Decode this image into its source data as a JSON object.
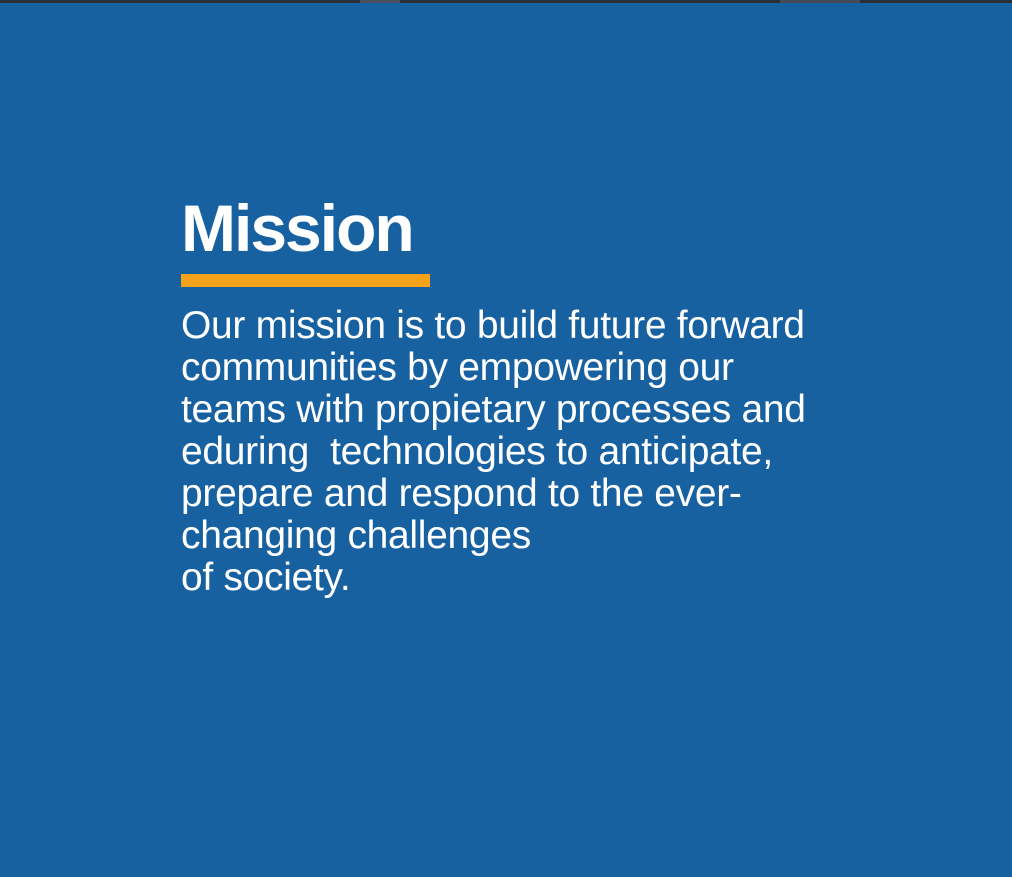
{
  "mission": {
    "title": "Mission",
    "body": "Our mission is to build future forward\ncommunities by empowering our\nteams with propietary processes and\neduring  technologies to anticipate,\nprepare and respond to the ever-\nchanging challenges\nof society."
  },
  "colors": {
    "background": "#1761a1",
    "accent": "#f7a21b",
    "text": "#ffffff"
  }
}
